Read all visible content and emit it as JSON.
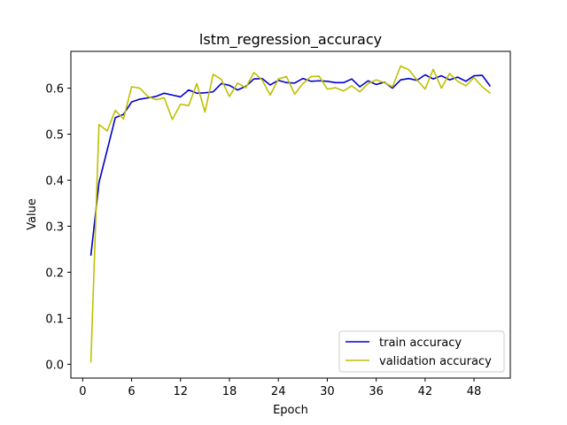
{
  "chart_data": {
    "type": "line",
    "title": "lstm_regression_accuracy",
    "xlabel": "Epoch",
    "ylabel": "Value",
    "xlim": [
      -1.45,
      52.45
    ],
    "ylim": [
      -0.03,
      0.68
    ],
    "xticks": [
      0,
      6,
      12,
      18,
      24,
      30,
      36,
      42,
      48
    ],
    "yticks": [
      0.0,
      0.1,
      0.2,
      0.3,
      0.4,
      0.5,
      0.6
    ],
    "ytick_labels": [
      "0.0",
      "0.1",
      "0.2",
      "0.3",
      "0.4",
      "0.5",
      "0.6"
    ],
    "legend": "lower-right",
    "grid": false,
    "x": [
      1,
      2,
      3,
      4,
      5,
      6,
      7,
      8,
      9,
      10,
      11,
      12,
      13,
      14,
      15,
      16,
      17,
      18,
      19,
      20,
      21,
      22,
      23,
      24,
      25,
      26,
      27,
      28,
      29,
      30,
      31,
      32,
      33,
      34,
      35,
      36,
      37,
      38,
      39,
      40,
      41,
      42,
      43,
      44,
      45,
      46,
      47,
      48,
      49,
      50
    ],
    "series": [
      {
        "name": "train accuracy",
        "color": "#0000cc",
        "values": [
          0.236,
          0.395,
          0.465,
          0.536,
          0.543,
          0.57,
          0.576,
          0.579,
          0.582,
          0.589,
          0.585,
          0.581,
          0.596,
          0.589,
          0.59,
          0.592,
          0.61,
          0.606,
          0.596,
          0.604,
          0.62,
          0.621,
          0.607,
          0.617,
          0.612,
          0.611,
          0.621,
          0.615,
          0.616,
          0.615,
          0.612,
          0.612,
          0.62,
          0.603,
          0.616,
          0.608,
          0.613,
          0.6,
          0.618,
          0.621,
          0.617,
          0.629,
          0.62,
          0.627,
          0.618,
          0.624,
          0.615,
          0.627,
          0.628,
          0.604
        ]
      },
      {
        "name": "validation accuracy",
        "color": "#bfbf00",
        "values": [
          0.004,
          0.521,
          0.507,
          0.552,
          0.533,
          0.603,
          0.6,
          0.582,
          0.575,
          0.579,
          0.532,
          0.565,
          0.562,
          0.61,
          0.548,
          0.63,
          0.619,
          0.582,
          0.611,
          0.601,
          0.634,
          0.618,
          0.585,
          0.62,
          0.625,
          0.587,
          0.61,
          0.625,
          0.626,
          0.598,
          0.601,
          0.594,
          0.605,
          0.592,
          0.61,
          0.618,
          0.612,
          0.603,
          0.648,
          0.64,
          0.618,
          0.598,
          0.641,
          0.6,
          0.632,
          0.615,
          0.605,
          0.623,
          0.603,
          0.589
        ]
      }
    ]
  }
}
